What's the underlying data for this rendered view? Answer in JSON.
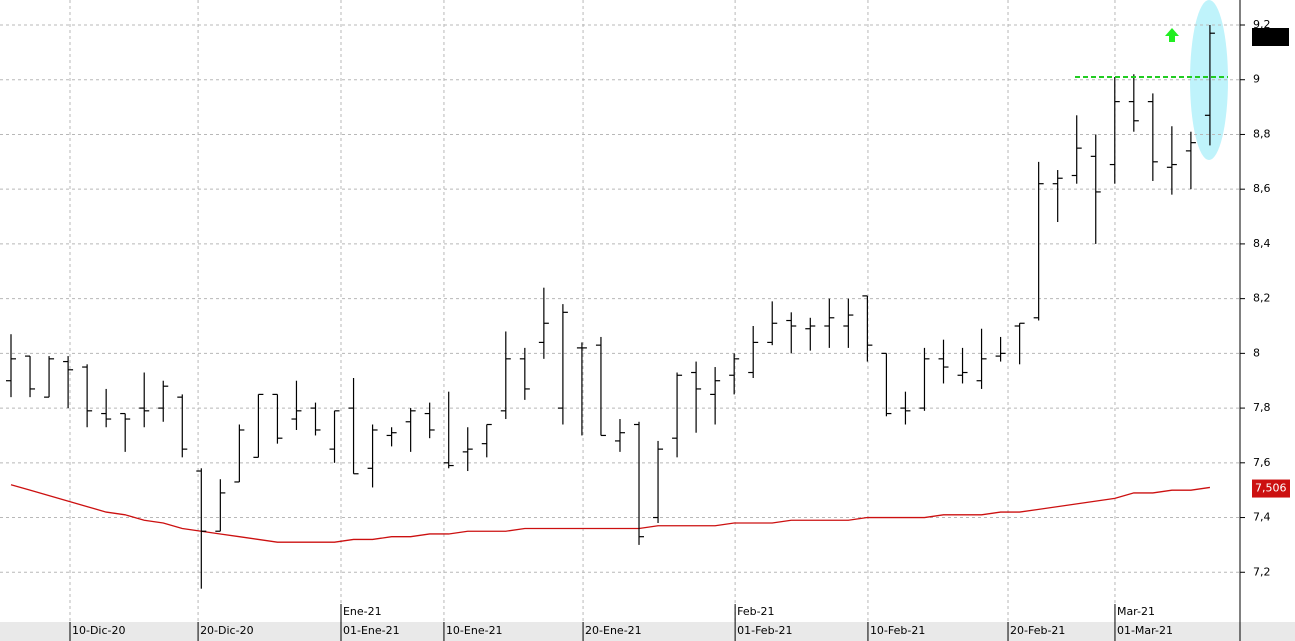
{
  "chart_data": {
    "type": "ohlc",
    "series": [
      {
        "color": "#000000",
        "open": [
          7.9,
          7.99,
          7.84,
          7.97,
          7.95,
          7.78,
          7.78,
          7.8,
          7.8,
          7.84,
          7.57,
          7.35,
          7.53,
          7.62,
          7.85,
          7.76,
          7.8,
          7.65,
          7.8,
          7.58,
          7.7,
          7.75,
          7.78,
          7.6,
          7.64,
          7.67,
          7.79,
          7.98,
          8.04,
          7.8,
          8.02,
          8.03,
          7.68,
          7.74,
          7.4,
          7.69,
          7.93,
          7.85,
          7.92,
          7.93,
          8.04,
          8.12,
          8.09,
          8.1,
          8.1,
          8.21,
          8.0,
          7.8,
          7.8,
          7.98,
          7.92,
          7.9,
          7.99,
          8.1,
          8.13,
          8.62,
          8.65,
          8.72,
          8.69,
          8.92,
          8.92,
          8.68,
          8.74,
          8.87
        ],
        "high": [
          8.07,
          7.99,
          7.99,
          7.99,
          7.96,
          7.87,
          7.78,
          7.93,
          7.9,
          7.85,
          7.58,
          7.54,
          7.74,
          7.85,
          7.85,
          7.9,
          7.82,
          7.79,
          7.91,
          7.74,
          7.73,
          7.8,
          7.82,
          7.86,
          7.73,
          7.74,
          8.08,
          8.02,
          8.24,
          8.18,
          8.04,
          8.06,
          7.76,
          7.75,
          7.68,
          7.93,
          7.97,
          7.95,
          8.0,
          8.1,
          8.19,
          8.15,
          8.13,
          8.2,
          8.2,
          8.21,
          8.0,
          7.86,
          8.02,
          8.05,
          8.02,
          8.09,
          8.06,
          8.11,
          8.7,
          8.67,
          8.87,
          8.8,
          9.01,
          9.02,
          8.95,
          8.83,
          8.81,
          9.2
        ],
        "low": [
          7.84,
          7.84,
          7.84,
          7.8,
          7.73,
          7.73,
          7.64,
          7.73,
          7.75,
          7.62,
          7.14,
          7.35,
          7.53,
          7.62,
          7.67,
          7.72,
          7.7,
          7.6,
          7.56,
          7.51,
          7.66,
          7.64,
          7.69,
          7.58,
          7.57,
          7.62,
          7.76,
          7.83,
          7.98,
          7.74,
          7.7,
          7.7,
          7.64,
          7.3,
          7.38,
          7.62,
          7.71,
          7.74,
          7.85,
          7.91,
          8.03,
          8.0,
          8.01,
          8.02,
          8.02,
          7.97,
          7.77,
          7.74,
          7.79,
          7.89,
          7.89,
          7.87,
          7.97,
          7.96,
          8.12,
          8.48,
          8.62,
          8.4,
          8.62,
          8.81,
          8.63,
          8.58,
          8.6,
          8.76
        ],
        "close": [
          7.98,
          7.87,
          7.98,
          7.94,
          7.79,
          7.76,
          7.76,
          7.79,
          7.88,
          7.65,
          7.35,
          7.49,
          7.72,
          7.85,
          7.69,
          7.79,
          7.72,
          7.79,
          7.56,
          7.72,
          7.71,
          7.79,
          7.72,
          7.59,
          7.65,
          7.74,
          7.98,
          7.87,
          8.11,
          8.15,
          8.02,
          7.7,
          7.71,
          7.33,
          7.65,
          7.92,
          7.87,
          7.9,
          7.98,
          8.04,
          8.11,
          8.1,
          8.1,
          8.13,
          8.14,
          8.03,
          7.78,
          7.79,
          7.98,
          7.95,
          7.93,
          7.98,
          8.0,
          8.11,
          8.62,
          8.64,
          8.75,
          8.59,
          8.92,
          8.85,
          8.7,
          8.69,
          8.77,
          9.17
        ]
      }
    ],
    "overlays": [
      {
        "color": "#cc1010",
        "values": [
          7.52,
          7.5,
          7.48,
          7.46,
          7.44,
          7.42,
          7.41,
          7.39,
          7.38,
          7.36,
          7.35,
          7.34,
          7.33,
          7.32,
          7.31,
          7.31,
          7.31,
          7.31,
          7.32,
          7.32,
          7.33,
          7.33,
          7.34,
          7.34,
          7.35,
          7.35,
          7.35,
          7.36,
          7.36,
          7.36,
          7.36,
          7.36,
          7.36,
          7.36,
          7.37,
          7.37,
          7.37,
          7.37,
          7.38,
          7.38,
          7.38,
          7.39,
          7.39,
          7.39,
          7.39,
          7.4,
          7.4,
          7.4,
          7.4,
          7.41,
          7.41,
          7.41,
          7.42,
          7.42,
          7.43,
          7.44,
          7.45,
          7.46,
          7.47,
          7.49,
          7.49,
          7.5,
          7.5,
          7.51
        ],
        "last_value": {
          "value": 7.506,
          "label": "7,506"
        }
      }
    ],
    "xlim": [
      -0.578,
      64.58
    ],
    "xticks": [
      {
        "value": 3.1,
        "label": "10-Dic-20"
      },
      {
        "value": 9.83,
        "label": "20-Dic-20"
      },
      {
        "value": 17.34,
        "label": "01-Ene-21"
      },
      {
        "value": 22.75,
        "label": "10-Ene-21"
      },
      {
        "value": 30.06,
        "label": "20-Ene-21"
      },
      {
        "value": 38.05,
        "label": "01-Feb-21"
      },
      {
        "value": 45.03,
        "label": "10-Feb-21"
      },
      {
        "value": 52.39,
        "label": "20-Feb-21"
      },
      {
        "value": 58.01,
        "label": "01-Mar-21"
      }
    ],
    "month_ticks": [
      {
        "value": 17.34,
        "label": "Ene-21"
      },
      {
        "value": 38.05,
        "label": "Feb-21"
      },
      {
        "value": 58.01,
        "label": "Mar-21"
      }
    ],
    "ylim": [
      7.0146,
      9.2
    ],
    "yticks": [
      {
        "value": 7.2,
        "label": "7,2"
      },
      {
        "value": 7.4,
        "label": "7,4"
      },
      {
        "value": 7.6,
        "label": "7,6"
      },
      {
        "value": 7.8,
        "label": "7,8"
      },
      8,
      {
        "value": 8.2,
        "label": "8,2"
      },
      {
        "value": 8.4,
        "label": "8,4"
      },
      {
        "value": 8.6,
        "label": "8,6"
      },
      {
        "value": 8.8,
        "label": "8,8"
      },
      9,
      {
        "value": 9.2,
        "label": "9,2"
      }
    ],
    "grid": true
  }
}
